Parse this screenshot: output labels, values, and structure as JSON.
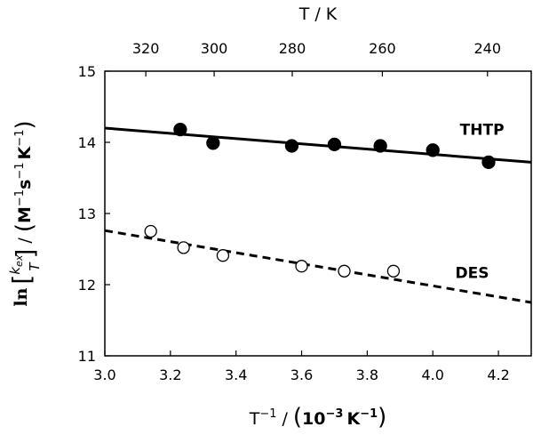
{
  "chart_data": {
    "type": "scatter",
    "xlabel": "T⁻¹ / (10⁻³ K⁻¹)",
    "xlabel_parts": {
      "main": "T",
      "main_sup": "−1",
      "sep": "/",
      "ten": "10",
      "ten_sup": "−3",
      "unit": "K",
      "unit_sup": "−1"
    },
    "ylabel": "ln [kex/T] / (M⁻¹s⁻¹K⁻¹)",
    "ylabel_parts": {
      "ln": "ln",
      "k": "k",
      "k_sub": "ex",
      "den": "T",
      "sep": "/",
      "m": "M",
      "m_sup": "−1",
      "s": "s",
      "s_sup": "−1",
      "kk": "K",
      "k_sup": "−1"
    },
    "top_xlabel": "T / K",
    "xlim": [
      3.0,
      4.3
    ],
    "ylim": [
      11,
      15
    ],
    "xticks": [
      "3.0",
      "3.2",
      "3.4",
      "3.6",
      "3.8",
      "4.0",
      "4.2"
    ],
    "xtick_values": [
      3.0,
      3.2,
      3.4,
      3.6,
      3.8,
      4.0,
      4.2
    ],
    "yticks": [
      "11",
      "12",
      "13",
      "14",
      "15"
    ],
    "ytick_values": [
      11,
      12,
      13,
      14,
      15
    ],
    "top_ticks": [
      "320",
      "300",
      "280",
      "260",
      "240"
    ],
    "top_tick_temps": [
      320,
      300,
      280,
      260,
      240
    ],
    "grid": false,
    "series": [
      {
        "name": "THTP",
        "marker": "filled-circle",
        "x": [
          3.23,
          3.33,
          3.57,
          3.7,
          3.84,
          4.0,
          4.17
        ],
        "y": [
          14.18,
          13.99,
          13.95,
          13.97,
          13.95,
          13.89,
          13.72
        ],
        "fit": {
          "style": "solid",
          "x": [
            3.0,
            4.3
          ],
          "y": [
            14.2,
            13.72
          ]
        },
        "label_pos": {
          "x": 4.15,
          "y": 14.18
        }
      },
      {
        "name": "DES",
        "marker": "open-circle",
        "x": [
          3.14,
          3.24,
          3.36,
          3.6,
          3.73,
          3.88
        ],
        "y": [
          12.75,
          12.52,
          12.41,
          12.26,
          12.19,
          12.19
        ],
        "fit": {
          "style": "dashed",
          "x": [
            3.0,
            4.3
          ],
          "y": [
            12.76,
            11.75
          ]
        },
        "label_pos": {
          "x": 4.12,
          "y": 12.17
        }
      }
    ]
  }
}
